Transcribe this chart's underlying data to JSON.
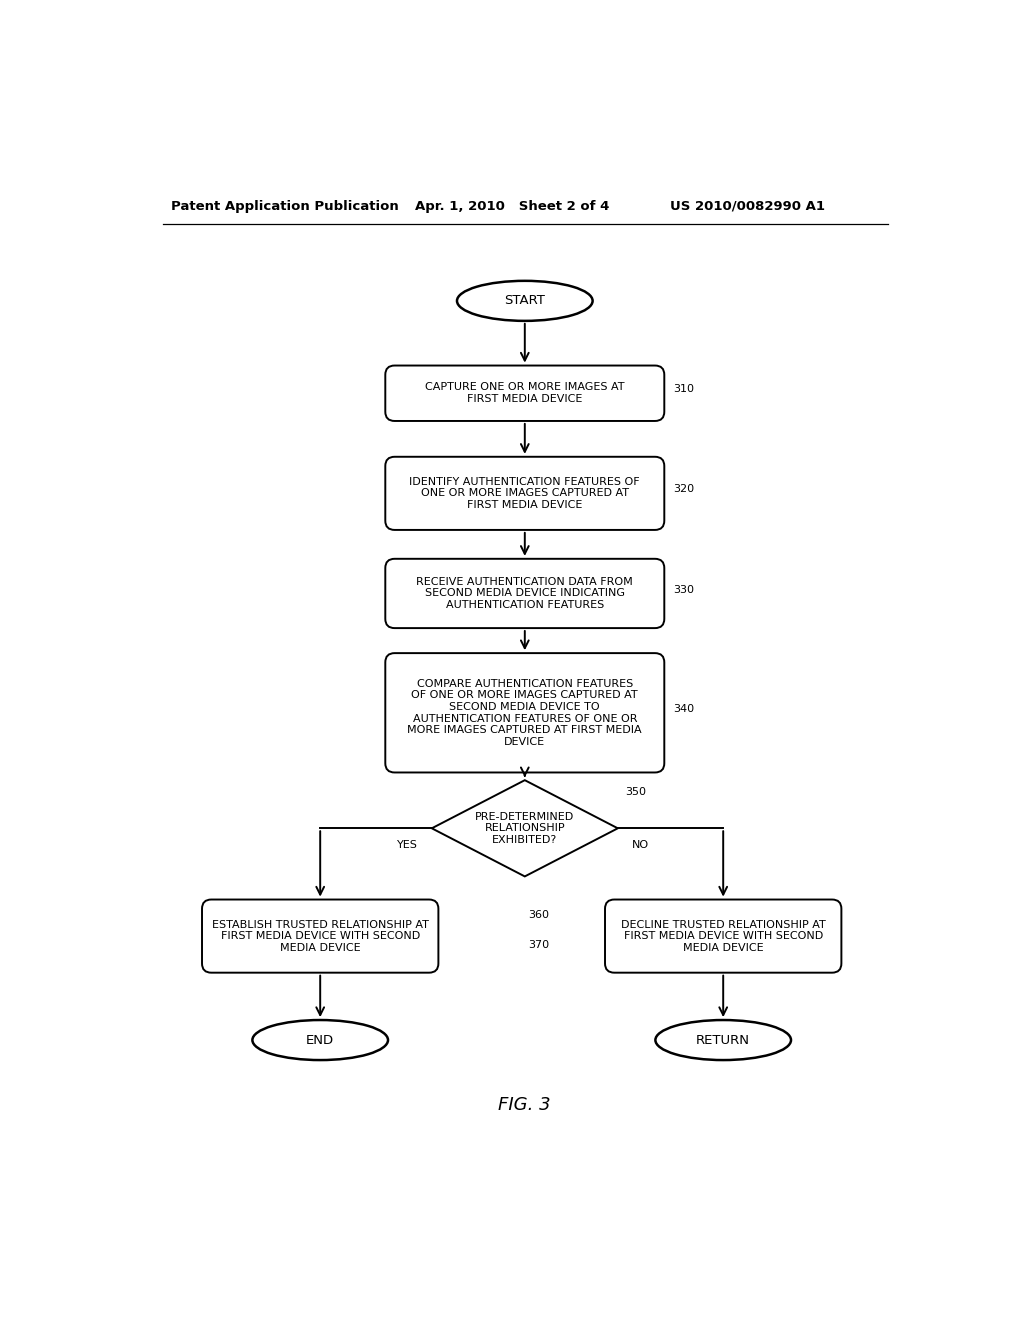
{
  "bg_color": "#ffffff",
  "header_left": "Patent Application Publication",
  "header_mid": "Apr. 1, 2010   Sheet 2 of 4",
  "header_right": "US 2010/0082990 A1",
  "fig_label": "FIG. 3",
  "start_text": "START",
  "end_text": "END",
  "return_text": "RETURN",
  "boxes": [
    {
      "id": "310",
      "text": "CAPTURE ONE OR MORE IMAGES AT\nFIRST MEDIA DEVICE",
      "label": "310"
    },
    {
      "id": "320",
      "text": "IDENTIFY AUTHENTICATION FEATURES OF\nONE OR MORE IMAGES CAPTURED AT\nFIRST MEDIA DEVICE",
      "label": "320"
    },
    {
      "id": "330",
      "text": "RECEIVE AUTHENTICATION DATA FROM\nSECOND MEDIA DEVICE INDICATING\nAUTHENTICATION FEATURES",
      "label": "330"
    },
    {
      "id": "340",
      "text": "COMPARE AUTHENTICATION FEATURES\nOF ONE OR MORE IMAGES CAPTURED AT\nSECOND MEDIA DEVICE TO\nAUTHENTICATION FEATURES OF ONE OR\nMORE IMAGES CAPTURED AT FIRST MEDIA\nDEVICE",
      "label": "340"
    },
    {
      "id": "360",
      "text": "ESTABLISH TRUSTED RELATIONSHIP AT\nFIRST MEDIA DEVICE WITH SECOND\nMEDIA DEVICE",
      "label": "360"
    },
    {
      "id": "370",
      "text": "DECLINE TRUSTED RELATIONSHIP AT\nFIRST MEDIA DEVICE WITH SECOND\nMEDIA DEVICE",
      "label": "370"
    }
  ],
  "diamond_text": "PRE-DETERMINED\nRELATIONSHIP\nEXHIBITED?",
  "diamond_label": "350",
  "yes_text": "YES",
  "no_text": "NO",
  "line_color": "#000000",
  "text_color": "#000000",
  "box_edge_color": "#000000",
  "header_fontsize": 9.5,
  "body_fontsize": 8.0,
  "label_fontsize": 8.0,
  "fig_fontsize": 13
}
